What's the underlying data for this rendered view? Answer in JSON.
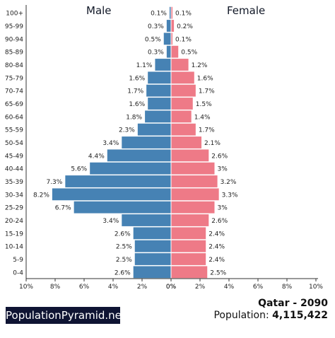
{
  "header": {
    "male_label": "Male",
    "female_label": "Female"
  },
  "footer": {
    "brand": "PopulationPyramid.net",
    "country_year": "Qatar - 2090",
    "population_label": "Population:",
    "population_value": "4,115,422"
  },
  "colors": {
    "male": "#4682b4",
    "female": "#ee7a87",
    "axis": "#333333"
  },
  "chart_data": {
    "type": "bar",
    "orientation": "horizontal-pyramid",
    "categories": [
      "100+",
      "95-99",
      "90-94",
      "85-89",
      "80-84",
      "75-79",
      "70-74",
      "65-69",
      "60-64",
      "55-59",
      "50-54",
      "45-49",
      "40-44",
      "35-39",
      "30-34",
      "25-29",
      "20-24",
      "15-19",
      "10-14",
      "5-9",
      "0-4"
    ],
    "series": [
      {
        "name": "Male",
        "values": [
          0.1,
          0.3,
          0.5,
          0.3,
          1.1,
          1.6,
          1.7,
          1.6,
          1.8,
          2.3,
          3.4,
          4.4,
          5.6,
          7.3,
          8.2,
          6.7,
          3.4,
          2.6,
          2.5,
          2.5,
          2.6
        ]
      },
      {
        "name": "Female",
        "values": [
          0.1,
          0.2,
          0.1,
          0.5,
          1.2,
          1.6,
          1.7,
          1.5,
          1.4,
          1.7,
          2.1,
          2.6,
          3.0,
          3.2,
          3.3,
          3.0,
          2.6,
          2.4,
          2.4,
          2.4,
          2.5
        ]
      }
    ],
    "xlim": [
      0,
      10
    ],
    "xticks": [
      "10%",
      "8%",
      "6%",
      "4%",
      "2%",
      "0%",
      "0%",
      "2%",
      "4%",
      "6%",
      "8%",
      "10%"
    ],
    "value_suffix": "%"
  }
}
